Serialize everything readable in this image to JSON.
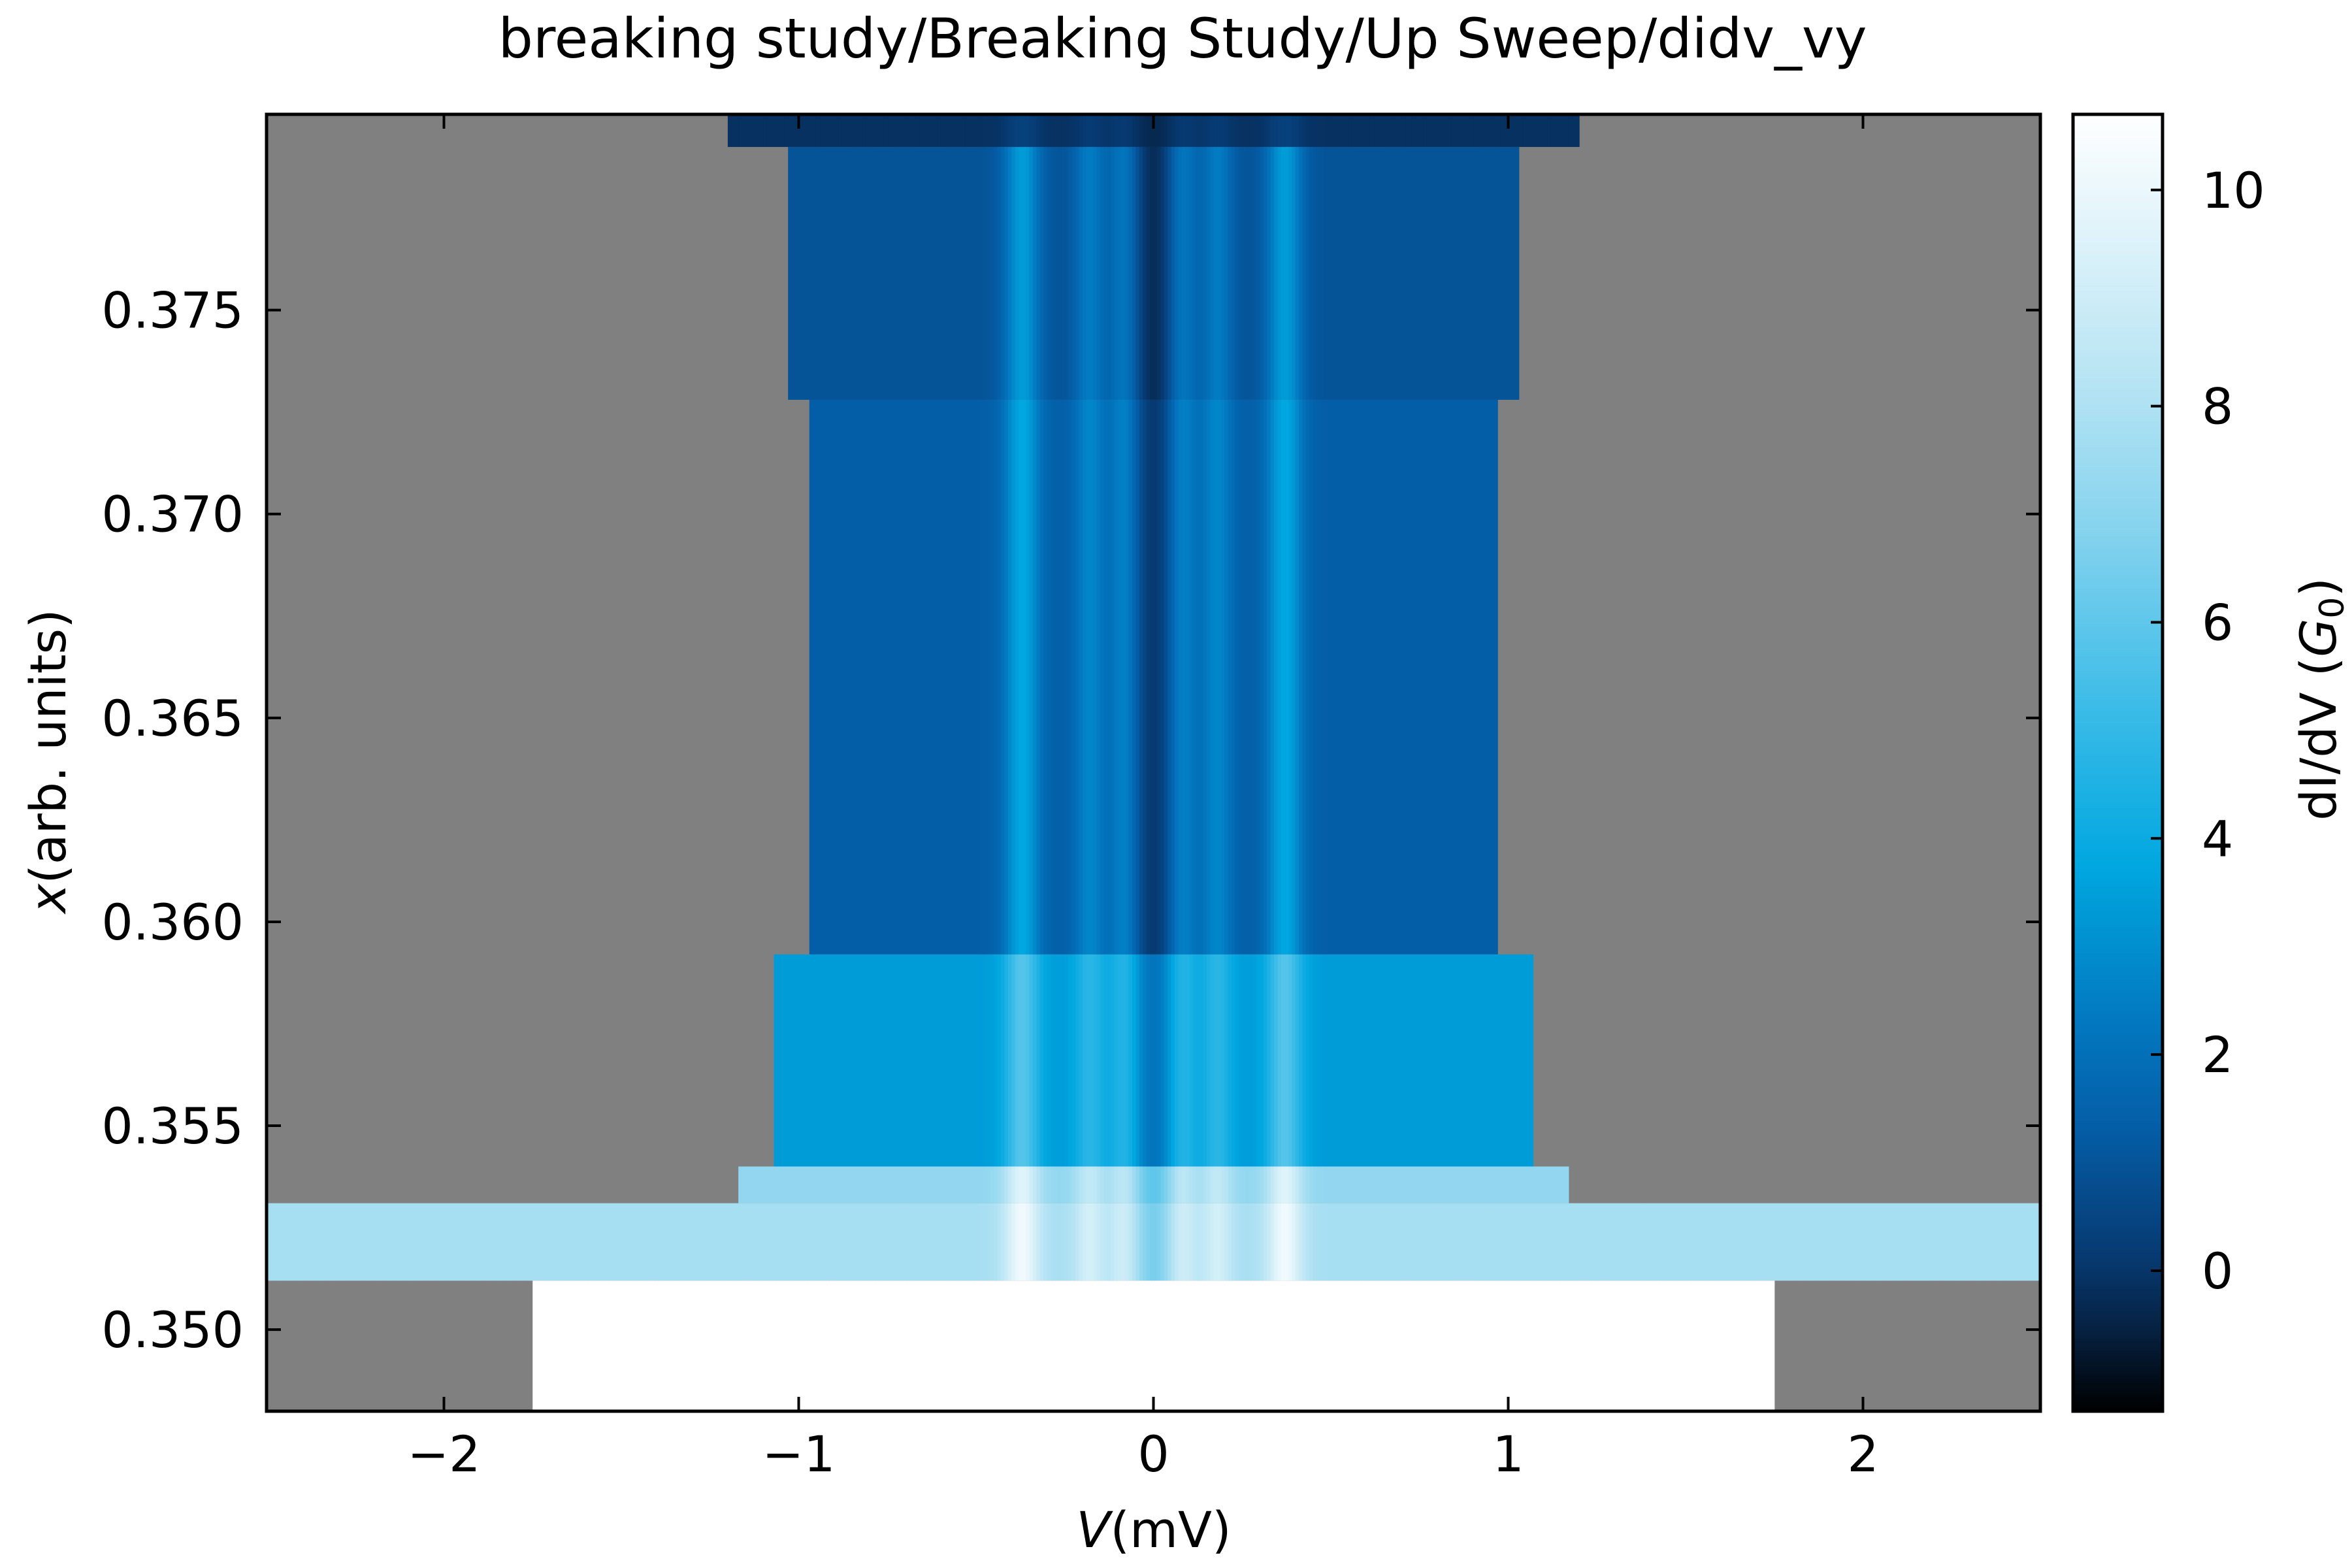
{
  "chart_data": {
    "type": "heatmap",
    "title": "breaking study/Breaking Study/Up Sweep/didv_vy",
    "xlabel": {
      "symbol": "V",
      "unit": "(mV)"
    },
    "ylabel": {
      "symbol": "x",
      "unit": "(arb. units)"
    },
    "colorbar_label": {
      "pre": "dI/dV (",
      "sym": "G",
      "sub": "0",
      "post": ")"
    },
    "xlim": [
      -2.5,
      2.5
    ],
    "ylim": [
      0.348,
      0.3798
    ],
    "x_ticks": [
      -2,
      -1,
      0,
      1,
      2
    ],
    "x_tick_labels": [
      "−2",
      "−1",
      "0",
      "1",
      "2"
    ],
    "y_ticks": [
      0.35,
      0.355,
      0.36,
      0.365,
      0.37,
      0.375
    ],
    "y_tick_labels": [
      "0.350",
      "0.355",
      "0.360",
      "0.365",
      "0.370",
      "0.375"
    ],
    "colorbar": {
      "range": [
        -1.3,
        10.7
      ],
      "ticks": [
        0,
        2,
        4,
        6,
        8,
        10
      ],
      "tick_labels": [
        "0",
        "2",
        "4",
        "6",
        "8",
        "10"
      ],
      "colormap": "blue-to-white",
      "stops": [
        "#000000",
        "#06203f",
        "#073a72",
        "#045ea7",
        "#0278c0",
        "#00a7e0",
        "#3fbde8",
        "#86d3ee",
        "#b9e5f4",
        "#ffffff"
      ]
    },
    "nan_color": "#808080",
    "grid": false,
    "segments": [
      {
        "x_min": 0.379,
        "x_max": 0.3798,
        "v_min": -1.2,
        "v_max": 1.2,
        "base": -0.1
      },
      {
        "x_min": 0.3728,
        "x_max": 0.379,
        "v_min": -1.03,
        "v_max": 1.03,
        "base": 1.0
      },
      {
        "x_min": 0.3592,
        "x_max": 0.3728,
        "v_min": -0.97,
        "v_max": 0.97,
        "base": 1.35
      },
      {
        "x_min": 0.354,
        "x_max": 0.3592,
        "v_min": -1.07,
        "v_max": 1.07,
        "base": 3.4
      },
      {
        "x_min": 0.3531,
        "x_max": 0.354,
        "v_min": -1.17,
        "v_max": 1.17,
        "base": 7.2
      },
      {
        "x_min": 0.3512,
        "x_max": 0.3531,
        "v_min": -2.5,
        "v_max": 2.5,
        "base": 7.8
      },
      {
        "x_min": 0.348,
        "x_max": 0.3512,
        "v_min": -1.75,
        "v_max": 1.75,
        "base": 10.7
      }
    ],
    "conductance_peaks_mV": [
      -0.37,
      0.37,
      -0.18,
      0.18,
      -0.08,
      0.08
    ],
    "zero_bias_dip_mV": 0.0
  }
}
